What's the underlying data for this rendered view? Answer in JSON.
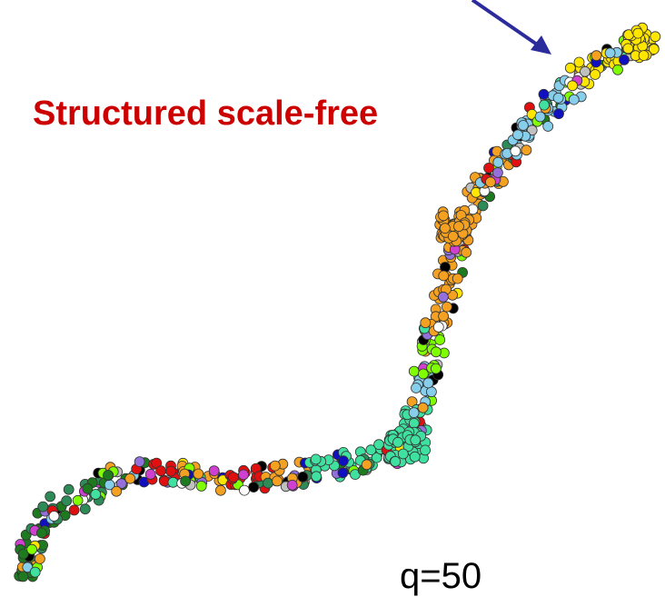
{
  "title": "Structured scale-free",
  "q_label": "q=50",
  "colors": {
    "title": "#cc0000",
    "arrow": "#2b2b9c",
    "node_stroke": "#333333",
    "label": "#000000"
  },
  "node_palette": [
    "#2e8b57",
    "#1e7a1e",
    "#40e0a0",
    "#f4a020",
    "#ffe600",
    "#87ceeb",
    "#e01010",
    "#d040d0",
    "#7fff00",
    "#1010c0",
    "#ffffff",
    "#9370db",
    "#000000",
    "#c0c0c0"
  ]
}
